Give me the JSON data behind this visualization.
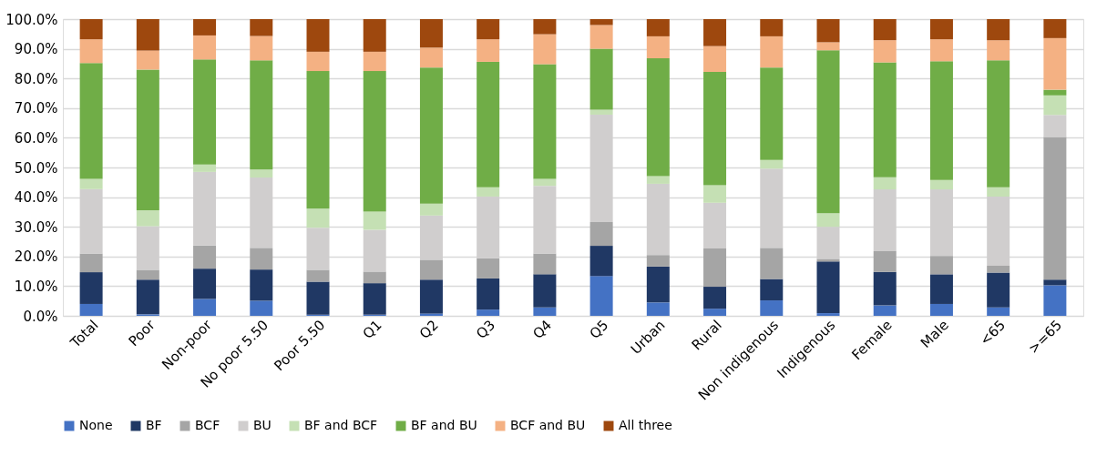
{
  "chart_data": {
    "type": "bar",
    "stacked": true,
    "categories": [
      "Total",
      "Poor",
      "Non-poor",
      "No poor 5.50",
      "Poor 5.50",
      "Q1",
      "Q2",
      "Q3",
      "Q4",
      "Q5",
      "Urban",
      "Rural",
      "Non indigenous",
      "Indigenous",
      "Female",
      "Male",
      "<65",
      ">=65"
    ],
    "series": [
      {
        "name": "None",
        "color": "#4472c4",
        "values": [
          4,
          0.5,
          5.7,
          5.1,
          0.4,
          0.4,
          0.8,
          2.1,
          2.8,
          13.4,
          4.5,
          2.4,
          5.2,
          0.9,
          3.5,
          4,
          2.8,
          10.3
        ]
      },
      {
        "name": "BF",
        "color": "#203864",
        "values": [
          10.7,
          11.7,
          10.2,
          10.5,
          11.1,
          10.6,
          11.4,
          10.5,
          11.2,
          10.2,
          12.1,
          7.4,
          7.2,
          17.4,
          11.3,
          10,
          11.8,
          1.9
        ]
      },
      {
        "name": "BCF",
        "color": "#a5a5a5",
        "values": [
          6.3,
          3.3,
          7.8,
          7.3,
          4,
          3.9,
          6.7,
          6.8,
          7,
          8,
          3.9,
          12.9,
          10.5,
          0.9,
          7,
          6.2,
          2.3,
          48.1
        ]
      },
      {
        "name": "BU",
        "color": "#d0cece",
        "values": [
          21.7,
          14.7,
          24.8,
          23.7,
          14.2,
          14.1,
          14.9,
          20.8,
          22.8,
          36.2,
          24,
          15.4,
          26.7,
          10.8,
          20.8,
          22.4,
          23.3,
          7.4
        ]
      },
      {
        "name": "BF and BCF",
        "color": "#c5e0b4",
        "values": [
          3.5,
          5.4,
          2.5,
          2.7,
          6.4,
          6.1,
          4,
          3.1,
          2.4,
          1.7,
          2.6,
          5.9,
          2.9,
          4.6,
          4.1,
          3.2,
          3.1,
          6.6
        ]
      },
      {
        "name": "BF and BU",
        "color": "#70ad47",
        "values": [
          39,
          47.4,
          35.4,
          36.8,
          46.4,
          47.4,
          45.9,
          42.3,
          38.6,
          20.5,
          39.7,
          38.2,
          31.2,
          54.9,
          38.7,
          40,
          42.8,
          1.9
        ]
      },
      {
        "name": "BCF and BU",
        "color": "#f4b183",
        "values": [
          8,
          6.4,
          8.1,
          8.2,
          6.5,
          6.5,
          6.7,
          7.6,
          10.1,
          8,
          7.4,
          8.7,
          10.5,
          2.7,
          7.5,
          7.4,
          6.8,
          17.4
        ]
      },
      {
        "name": "All three",
        "color": "#9e480e",
        "values": [
          6.8,
          10.6,
          5.5,
          5.7,
          11,
          11,
          9.6,
          6.8,
          5.1,
          2,
          5.8,
          9.1,
          5.8,
          7.8,
          7.1,
          6.8,
          7.1,
          6.4
        ]
      }
    ],
    "ylim": [
      0,
      100
    ],
    "yticks": [
      {
        "value": 0,
        "label": "0.0%"
      },
      {
        "value": 10,
        "label": "10.0%"
      },
      {
        "value": 20,
        "label": "20.0%"
      },
      {
        "value": 30,
        "label": "30.0%"
      },
      {
        "value": 40,
        "label": "40.0%"
      },
      {
        "value": 50,
        "label": "50.0%"
      },
      {
        "value": 60,
        "label": "60.0%"
      },
      {
        "value": 70,
        "label": "70.0%"
      },
      {
        "value": 80,
        "label": "80.0%"
      },
      {
        "value": 90,
        "label": "90.0%"
      },
      {
        "value": 100,
        "label": "100.0%"
      }
    ],
    "grid": "y",
    "legend": "bottom"
  }
}
